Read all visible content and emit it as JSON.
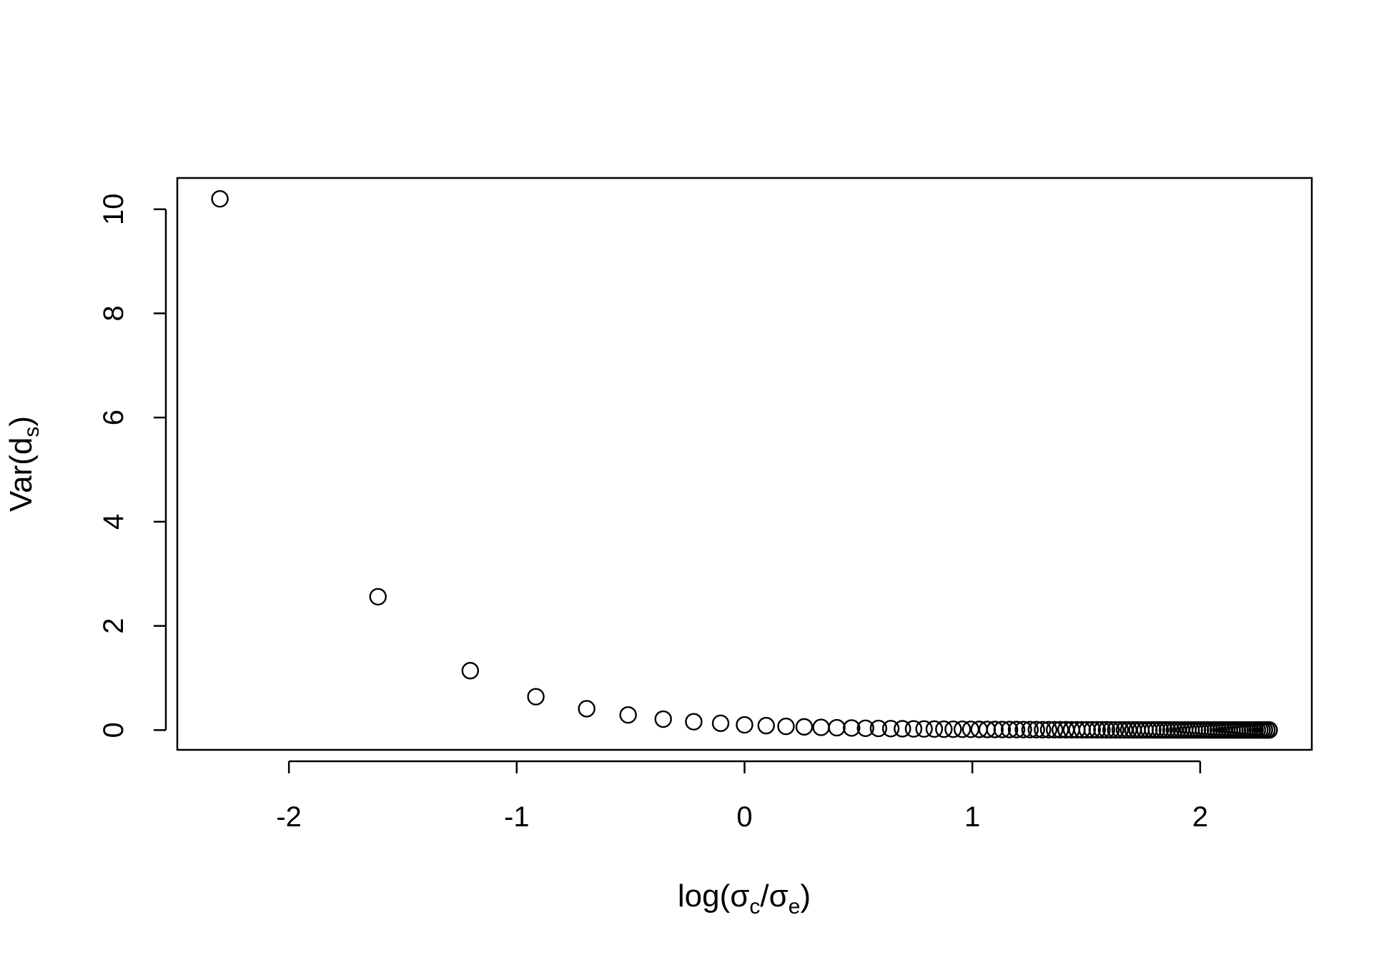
{
  "chart_data": {
    "type": "scatter",
    "title": "",
    "xlabel": {
      "text": "log(",
      "s1": "σ",
      "sub1": "c",
      "mid": "/",
      "s2": "σ",
      "sub2": "e",
      "end": ")"
    },
    "ylabel": {
      "text": "Var(d",
      "sub": "s",
      "end": ")"
    },
    "xlim": [
      -2.49,
      2.49
    ],
    "ylim": [
      -0.38,
      10.6
    ],
    "xticks": [
      -2,
      -1,
      0,
      1,
      2
    ],
    "xtick_labels": [
      "-2",
      "-1",
      "0",
      "1",
      "2"
    ],
    "yticks": [
      0,
      2,
      4,
      6,
      8,
      10
    ],
    "ytick_labels": [
      "0",
      "2",
      "4",
      "6",
      "8",
      "10"
    ],
    "grid": false,
    "marker": "open-circle",
    "color": "#000000",
    "series": [
      {
        "x": [
          -2.303,
          -1.609,
          -1.204,
          -0.916,
          -0.693,
          -0.511,
          -0.357,
          -0.223,
          -0.105,
          0.0,
          0.095,
          0.182,
          0.262,
          0.336,
          0.405,
          0.47,
          0.531,
          0.588,
          0.642,
          0.693,
          0.742,
          0.788,
          0.833,
          0.875,
          0.916,
          0.956,
          0.993,
          1.03,
          1.065,
          1.099,
          1.131,
          1.163,
          1.194,
          1.224,
          1.253,
          1.281,
          1.308,
          1.335,
          1.361,
          1.386,
          1.411,
          1.435,
          1.459,
          1.482,
          1.504,
          1.526,
          1.548,
          1.569,
          1.589,
          1.609,
          1.629,
          1.649,
          1.668,
          1.686,
          1.705,
          1.723,
          1.74,
          1.758,
          1.775,
          1.792,
          1.808,
          1.825,
          1.841,
          1.856,
          1.872,
          1.887,
          1.902,
          1.917,
          1.932,
          1.946,
          1.96,
          1.974,
          1.988,
          2.001,
          2.015,
          2.028,
          2.041,
          2.054,
          2.067,
          2.079,
          2.092,
          2.104,
          2.116,
          2.128,
          2.14,
          2.152,
          2.163,
          2.175,
          2.186,
          2.197,
          2.208,
          2.219,
          2.23,
          2.241,
          2.251,
          2.262,
          2.272,
          2.282,
          2.293,
          2.303
        ],
        "y": [
          10.2,
          2.56,
          1.14,
          0.64,
          0.41,
          0.29,
          0.21,
          0.16,
          0.13,
          0.1,
          0.085,
          0.071,
          0.061,
          0.052,
          0.045,
          0.04,
          0.035,
          0.031,
          0.028,
          0.025,
          0.023,
          0.021,
          0.019,
          0.017,
          0.016,
          0.015,
          0.014,
          0.013,
          0.012,
          0.011,
          0.0105,
          0.0099,
          0.0093,
          0.0088,
          0.0083,
          0.0078,
          0.0074,
          0.007,
          0.0067,
          0.0063,
          0.006,
          0.0057,
          0.0055,
          0.0052,
          0.005,
          0.0048,
          0.0046,
          0.0044,
          0.0042,
          0.004,
          0.0039,
          0.0037,
          0.0036,
          0.0035,
          0.0033,
          0.0032,
          0.0031,
          0.003,
          0.0029,
          0.0028,
          0.0027,
          0.0026,
          0.0025,
          0.0025,
          0.0024,
          0.0023,
          0.0022,
          0.0022,
          0.0021,
          0.0021,
          0.002,
          0.0019,
          0.0019,
          0.0018,
          0.0018,
          0.0017,
          0.0017,
          0.0017,
          0.0016,
          0.0016,
          0.0015,
          0.0015,
          0.0015,
          0.0014,
          0.0014,
          0.0014,
          0.0013,
          0.0013,
          0.0013,
          0.0012,
          0.0012,
          0.0012,
          0.0012,
          0.0011,
          0.0011,
          0.0011,
          0.0011,
          0.001,
          0.001,
          0.001
        ]
      }
    ]
  }
}
